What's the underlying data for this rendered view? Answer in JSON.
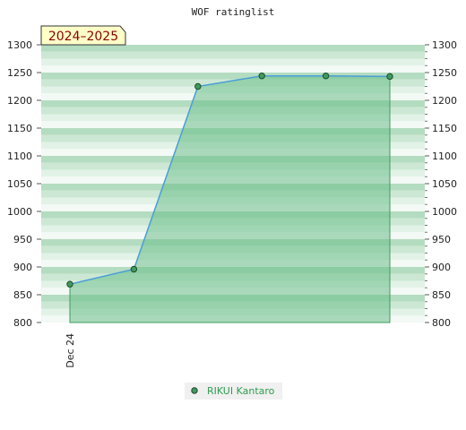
{
  "chart_data": {
    "type": "area",
    "title": "WOF ratinglist",
    "badge": "2024–2025",
    "x_tick_labels": [
      "Dec 24"
    ],
    "ylim": [
      800,
      1300
    ],
    "y_ticks": [
      800,
      850,
      900,
      950,
      1000,
      1050,
      1100,
      1150,
      1200,
      1250,
      1300
    ],
    "y_tick_labels_left": [
      "800",
      "850",
      "900",
      "950",
      "1000",
      "1050",
      "1100",
      "1150",
      "1200",
      "1250",
      "1300"
    ],
    "y_tick_labels_right": [
      "800",
      "850",
      "900",
      "950",
      "1000",
      "1050",
      "1100",
      "1150",
      "1200",
      "1250",
      "1300"
    ],
    "series": [
      {
        "name": "RIKUI Kantaro",
        "values": [
          869,
          896,
          1225,
          1244,
          1244,
          1243
        ]
      }
    ],
    "grid": true,
    "legend_position": "bottom-center",
    "colors": {
      "fill": "#6cc08a",
      "line": "#4c9ed8",
      "marker": "#3f9a5e",
      "marker_edge": "#1f4a2c",
      "band_dark": "#b4dcc0",
      "band_mid": "#cce8d4",
      "band_light": "#e2f2e7",
      "band_lightest": "#f3f9f4",
      "badge_fill": "#ffffc8",
      "badge_text": "#8b0000",
      "legend_text": "#2e9e4f",
      "legend_bg": "#f0f0f0",
      "axis_text": "#222222"
    }
  }
}
